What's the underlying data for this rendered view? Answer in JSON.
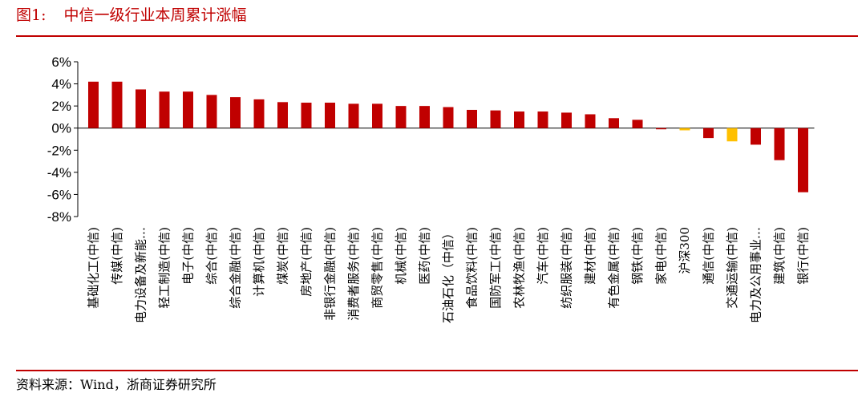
{
  "figure": {
    "label": "图1:",
    "title": "中信一级行业本周累计涨幅",
    "source": "资料来源：Wind，浙商证券研究所"
  },
  "colors": {
    "bar": "#c00000",
    "highlight": "#ffc000",
    "axis": "#000000",
    "rule": "#c00000"
  },
  "chart_data": {
    "type": "bar",
    "title": "中信一级行业本周累计涨幅",
    "xlabel": "",
    "ylabel": "",
    "ylim": [
      -8,
      6
    ],
    "yticks": [
      6,
      4,
      2,
      0,
      -2,
      -4,
      -6,
      -8
    ],
    "ytick_labels": [
      "6%",
      "4%",
      "2%",
      "0%",
      "-2%",
      "-4%",
      "-6%",
      "-8%"
    ],
    "grid": false,
    "legend": "none",
    "categories": [
      "基础化工(中信)",
      "传媒(中信)",
      "电力设备及新能…",
      "轻工制造(中信)",
      "电子(中信)",
      "综合(中信)",
      "综合金融(中信)",
      "计算机(中信)",
      "煤炭(中信)",
      "房地产(中信)",
      "非银行金融(中信)",
      "消费者服务(中信)",
      "商贸零售(中信)",
      "机械(中信)",
      "医药(中信)",
      "石油石化（中信）",
      "食品饮料(中信)",
      "国防军工(中信)",
      "农林牧渔(中信)",
      "汽车(中信)",
      "纺织服装(中信)",
      "建材(中信)",
      "有色金属(中信)",
      "钢铁(中信)",
      "家电(中信)",
      "沪深300",
      "通信(中信)",
      "交通运输(中信)",
      "电力及公用事业…",
      "建筑(中信)",
      "银行(中信)"
    ],
    "values": [
      4.2,
      4.2,
      3.5,
      3.3,
      3.3,
      3.0,
      2.8,
      2.6,
      2.35,
      2.3,
      2.3,
      2.2,
      2.2,
      2.0,
      2.0,
      1.9,
      1.65,
      1.6,
      1.5,
      1.5,
      1.4,
      1.25,
      0.9,
      0.75,
      -0.1,
      -0.2,
      -0.9,
      -1.2,
      -1.5,
      -2.9,
      -5.8
    ],
    "highlight_indices": [
      25,
      27
    ]
  }
}
